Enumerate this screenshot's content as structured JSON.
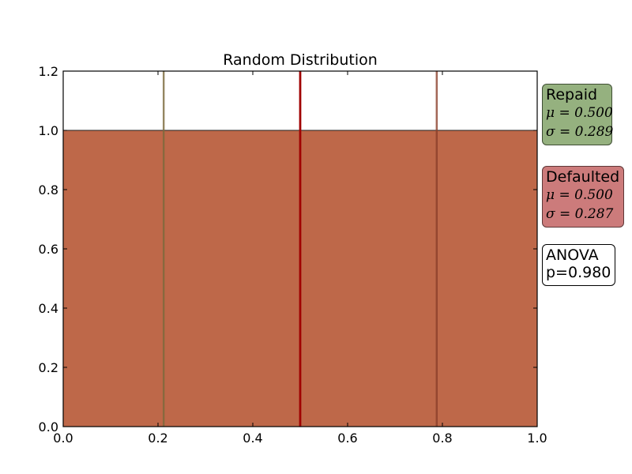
{
  "chart_data": {
    "type": "bar",
    "title": "Random Distribution",
    "xlabel": "",
    "ylabel": "",
    "xlim": [
      0.0,
      1.0
    ],
    "ylim": [
      0.0,
      1.2
    ],
    "xticks": [
      "0.0",
      "0.2",
      "0.4",
      "0.6",
      "0.8",
      "1.0"
    ],
    "yticks": [
      "0.0",
      "0.2",
      "0.4",
      "0.6",
      "0.8",
      "1.0",
      "1.2"
    ],
    "grid": false,
    "series": [
      {
        "name": "Repaid",
        "color": "#95b17f",
        "bins": [
          [
            0.0,
            1.0,
            1.0
          ]
        ],
        "mean": 0.5,
        "std_lines": [
          0.211,
          0.789
        ]
      },
      {
        "name": "Defaulted",
        "color": "#c15e41",
        "bins": [
          [
            0.0,
            1.0,
            1.0
          ]
        ],
        "mean": 0.5,
        "std_lines": [
          0.213,
          0.787
        ]
      }
    ],
    "mean_line_color": "#a00000",
    "std_line_color": "#8b3e2a"
  },
  "stats": {
    "repaid": {
      "heading": "Repaid",
      "mu": "μ = 0.500",
      "sigma": "σ = 0.289"
    },
    "defaulted": {
      "heading": "Defaulted",
      "mu": "μ = 0.500",
      "sigma": "σ = 0.287"
    },
    "anova": {
      "line1": "ANOVA",
      "line2": "p=0.980"
    }
  }
}
